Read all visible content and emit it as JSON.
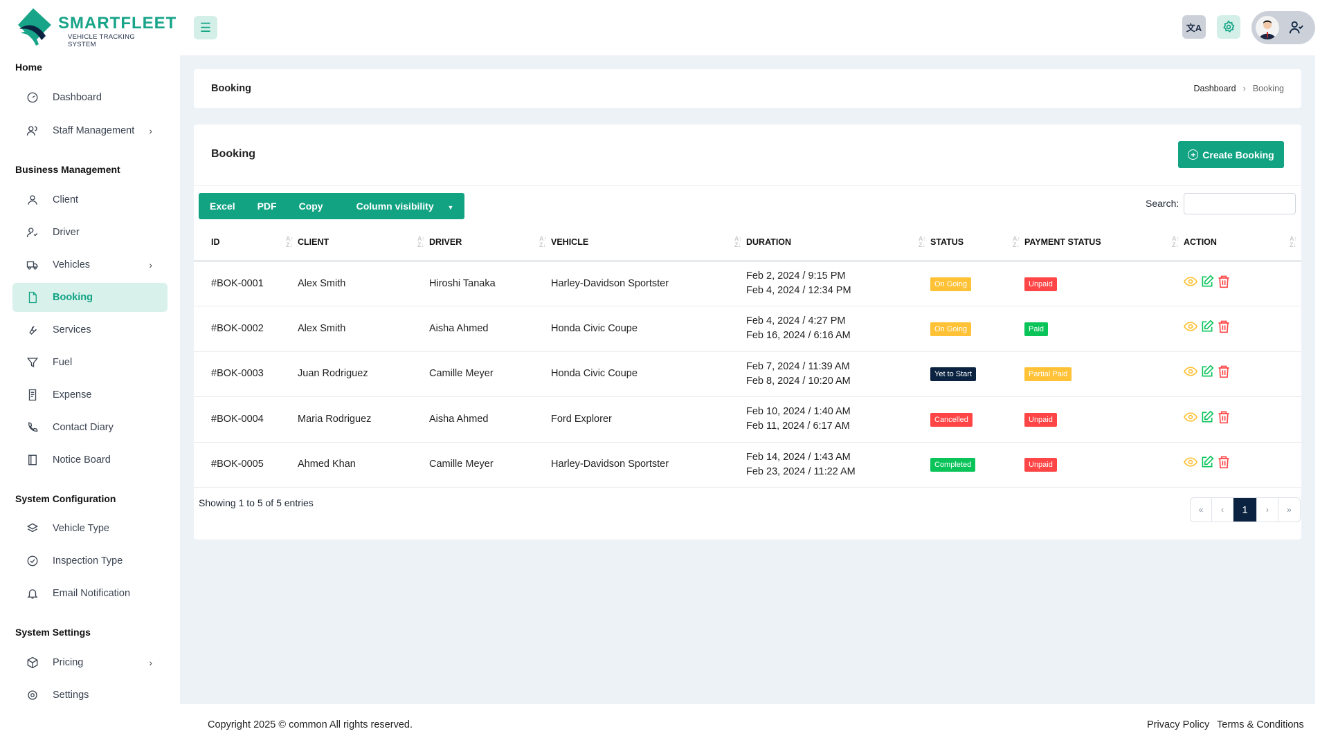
{
  "brand": {
    "name": "SMARTFLEET",
    "tagline": "VEHICLE TRACKING SYSTEM",
    "accent": "#12a383",
    "navy": "#0b2340"
  },
  "sidebar": {
    "sections": [
      {
        "title": "Home",
        "items": [
          {
            "label": "Dashboard",
            "icon": "gauge-icon"
          },
          {
            "label": "Staff Management",
            "icon": "users-icon",
            "chevron": true
          }
        ]
      },
      {
        "title": "Business Management",
        "items": [
          {
            "label": "Client",
            "icon": "user-icon"
          },
          {
            "label": "Driver",
            "icon": "user-check-icon"
          },
          {
            "label": "Vehicles",
            "icon": "truck-icon",
            "chevron": true
          },
          {
            "label": "Booking",
            "icon": "file-icon",
            "active": true
          },
          {
            "label": "Services",
            "icon": "wrench-icon"
          },
          {
            "label": "Fuel",
            "icon": "filter-icon"
          },
          {
            "label": "Expense",
            "icon": "receipt-icon"
          },
          {
            "label": "Contact Diary",
            "icon": "phone-icon"
          },
          {
            "label": "Notice Board",
            "icon": "notebook-icon"
          }
        ]
      },
      {
        "title": "System Configuration",
        "items": [
          {
            "label": "Vehicle Type",
            "icon": "layers-icon"
          },
          {
            "label": "Inspection Type",
            "icon": "check-circle-icon"
          },
          {
            "label": "Email Notification",
            "icon": "bell-icon"
          }
        ]
      },
      {
        "title": "System Settings",
        "items": [
          {
            "label": "Pricing",
            "icon": "box-icon",
            "chevron": true
          },
          {
            "label": "Settings",
            "icon": "gear-icon"
          }
        ]
      }
    ]
  },
  "page": {
    "title": "Booking",
    "breadcrumb": [
      "Dashboard",
      "Booking"
    ]
  },
  "card": {
    "title": "Booking",
    "create_label": "Create Booking",
    "export_buttons": [
      "Excel",
      "PDF",
      "Copy",
      "Column visibility"
    ],
    "search_label": "Search:",
    "search_value": ""
  },
  "table": {
    "headers": [
      "ID",
      "CLIENT",
      "DRIVER",
      "VEHICLE",
      "DURATION",
      "STATUS",
      "PAYMENT STATUS",
      "ACTION"
    ],
    "rows": [
      {
        "id": "#BOK-0001",
        "client": "Alex Smith",
        "driver": "Hiroshi Tanaka",
        "vehicle": "Harley-Davidson Sportster",
        "start": "Feb 2, 2024 / 9:15 PM",
        "end": "Feb 4, 2024 / 12:34 PM",
        "status": "On Going",
        "status_color": "#ffc135",
        "payment": "Unpaid",
        "payment_color": "#ff4545"
      },
      {
        "id": "#BOK-0002",
        "client": "Alex Smith",
        "driver": "Aisha Ahmed",
        "vehicle": "Honda Civic Coupe",
        "start": "Feb 4, 2024 / 4:27 PM",
        "end": "Feb 16, 2024 / 6:16 AM",
        "status": "On Going",
        "status_color": "#ffc135",
        "payment": "Paid",
        "payment_color": "#0ac45a"
      },
      {
        "id": "#BOK-0003",
        "client": "Juan Rodriguez",
        "driver": "Camille Meyer",
        "vehicle": "Honda Civic Coupe",
        "start": "Feb 7, 2024 / 11:39 AM",
        "end": "Feb 8, 2024 / 10:20 AM",
        "status": "Yet to Start",
        "status_color": "#0b2340",
        "payment": "Partial Paid",
        "payment_color": "#ffc135"
      },
      {
        "id": "#BOK-0004",
        "client": "Maria Rodriguez",
        "driver": "Aisha Ahmed",
        "vehicle": "Ford Explorer",
        "start": "Feb 10, 2024 / 1:40 AM",
        "end": "Feb 11, 2024 / 6:17 AM",
        "status": "Cancelled",
        "status_color": "#ff4545",
        "payment": "Unpaid",
        "payment_color": "#ff4545"
      },
      {
        "id": "#BOK-0005",
        "client": "Ahmed Khan",
        "driver": "Camille Meyer",
        "vehicle": "Harley-Davidson Sportster",
        "start": "Feb 14, 2024 / 1:43 AM",
        "end": "Feb 23, 2024 / 11:22 AM",
        "status": "Completed",
        "status_color": "#0ac45a",
        "payment": "Unpaid",
        "payment_color": "#ff4545"
      }
    ],
    "info": "Showing 1 to 5 of 5 entries",
    "pagination": {
      "first": "«",
      "prev": "‹",
      "current": "1",
      "next": "›",
      "last": "»"
    }
  },
  "footer": {
    "copyright": "Copyright 2025 © common All rights reserved.",
    "links": [
      "Privacy Policy",
      "Terms & Conditions"
    ]
  }
}
